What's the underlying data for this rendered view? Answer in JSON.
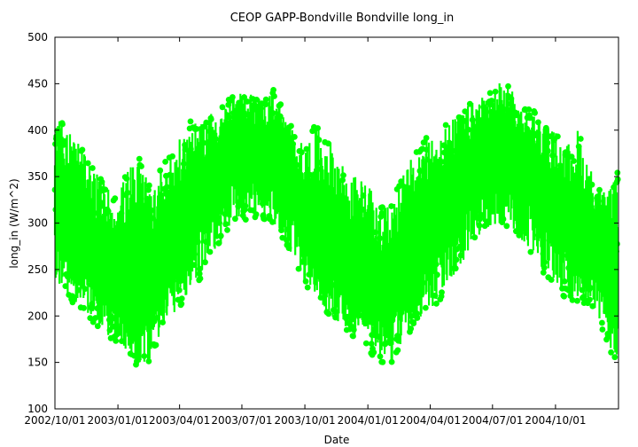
{
  "chart_data": {
    "type": "scatter",
    "title": "CEOP GAPP-Bondville Bondville  long_in",
    "xlabel": "Date",
    "ylabel": "long_in (W/m^2)",
    "ylim": [
      100,
      500
    ],
    "xlim": [
      "2002-10-01",
      "2005-01-01"
    ],
    "yticks": [
      "100",
      "150",
      "200",
      "250",
      "300",
      "350",
      "400",
      "450",
      "500"
    ],
    "xticks": [
      "2002/10/01",
      "2003/01/01",
      "2003/04/01",
      "2003/07/01",
      "2003/10/01",
      "2004/01/01",
      "2004/04/01",
      "2004/07/01",
      "2004/10/01"
    ],
    "grid": false,
    "legend": "none",
    "marker_color": "#00ff00",
    "series": [
      {
        "x": [
          "2002-10-01",
          "2002-10-15",
          "2002-11-01",
          "2002-11-15",
          "2002-12-01",
          "2002-12-15",
          "2003-01-01",
          "2003-01-15",
          "2003-02-01",
          "2003-02-15",
          "2003-03-01",
          "2003-03-15",
          "2003-04-01",
          "2003-04-15",
          "2003-05-01",
          "2003-05-15",
          "2003-06-01",
          "2003-06-15",
          "2003-07-01",
          "2003-07-15",
          "2003-08-01",
          "2003-08-15",
          "2003-09-01",
          "2003-09-15",
          "2003-10-01",
          "2003-10-15",
          "2003-11-01",
          "2003-11-15",
          "2003-12-01",
          "2003-12-15",
          "2004-01-01",
          "2004-01-15",
          "2004-02-01",
          "2004-02-15",
          "2004-03-01",
          "2004-03-15",
          "2004-04-01",
          "2004-04-15",
          "2004-05-01",
          "2004-05-15",
          "2004-06-01",
          "2004-06-15",
          "2004-07-01",
          "2004-07-15",
          "2004-08-01",
          "2004-08-15",
          "2004-09-01",
          "2004-09-15",
          "2004-10-01",
          "2004-10-15",
          "2004-11-01",
          "2004-11-15",
          "2004-12-01",
          "2004-12-15",
          "2004-12-31"
        ],
        "min": [
          240,
          225,
          210,
          200,
          190,
          180,
          170,
          155,
          145,
          150,
          175,
          195,
          210,
          225,
          240,
          260,
          280,
          295,
          300,
          305,
          305,
          300,
          280,
          260,
          235,
          220,
          205,
          195,
          185,
          175,
          165,
          150,
          145,
          165,
          180,
          195,
          205,
          215,
          235,
          250,
          275,
          290,
          295,
          300,
          290,
          280,
          260,
          245,
          230,
          220,
          215,
          210,
          205,
          160,
          150
        ],
        "max": [
          425,
          405,
          395,
          370,
          355,
          340,
          330,
          360,
          370,
          340,
          355,
          370,
          390,
          410,
          405,
          420,
          425,
          435,
          440,
          440,
          435,
          445,
          420,
          400,
          380,
          405,
          395,
          380,
          360,
          350,
          345,
          315,
          320,
          345,
          365,
          385,
          395,
          400,
          410,
          420,
          430,
          440,
          440,
          455,
          440,
          425,
          420,
          405,
          400,
          380,
          405,
          370,
          345,
          330,
          355
        ],
        "center": [
          320,
          305,
          290,
          275,
          262,
          250,
          240,
          238,
          235,
          242,
          258,
          275,
          295,
          315,
          330,
          345,
          360,
          372,
          380,
          385,
          378,
          370,
          350,
          330,
          310,
          298,
          285,
          270,
          258,
          250,
          242,
          230,
          225,
          240,
          262,
          280,
          300,
          315,
          330,
          345,
          360,
          370,
          378,
          385,
          375,
          362,
          345,
          330,
          315,
          302,
          300,
          285,
          270,
          250,
          250
        ]
      }
    ]
  }
}
